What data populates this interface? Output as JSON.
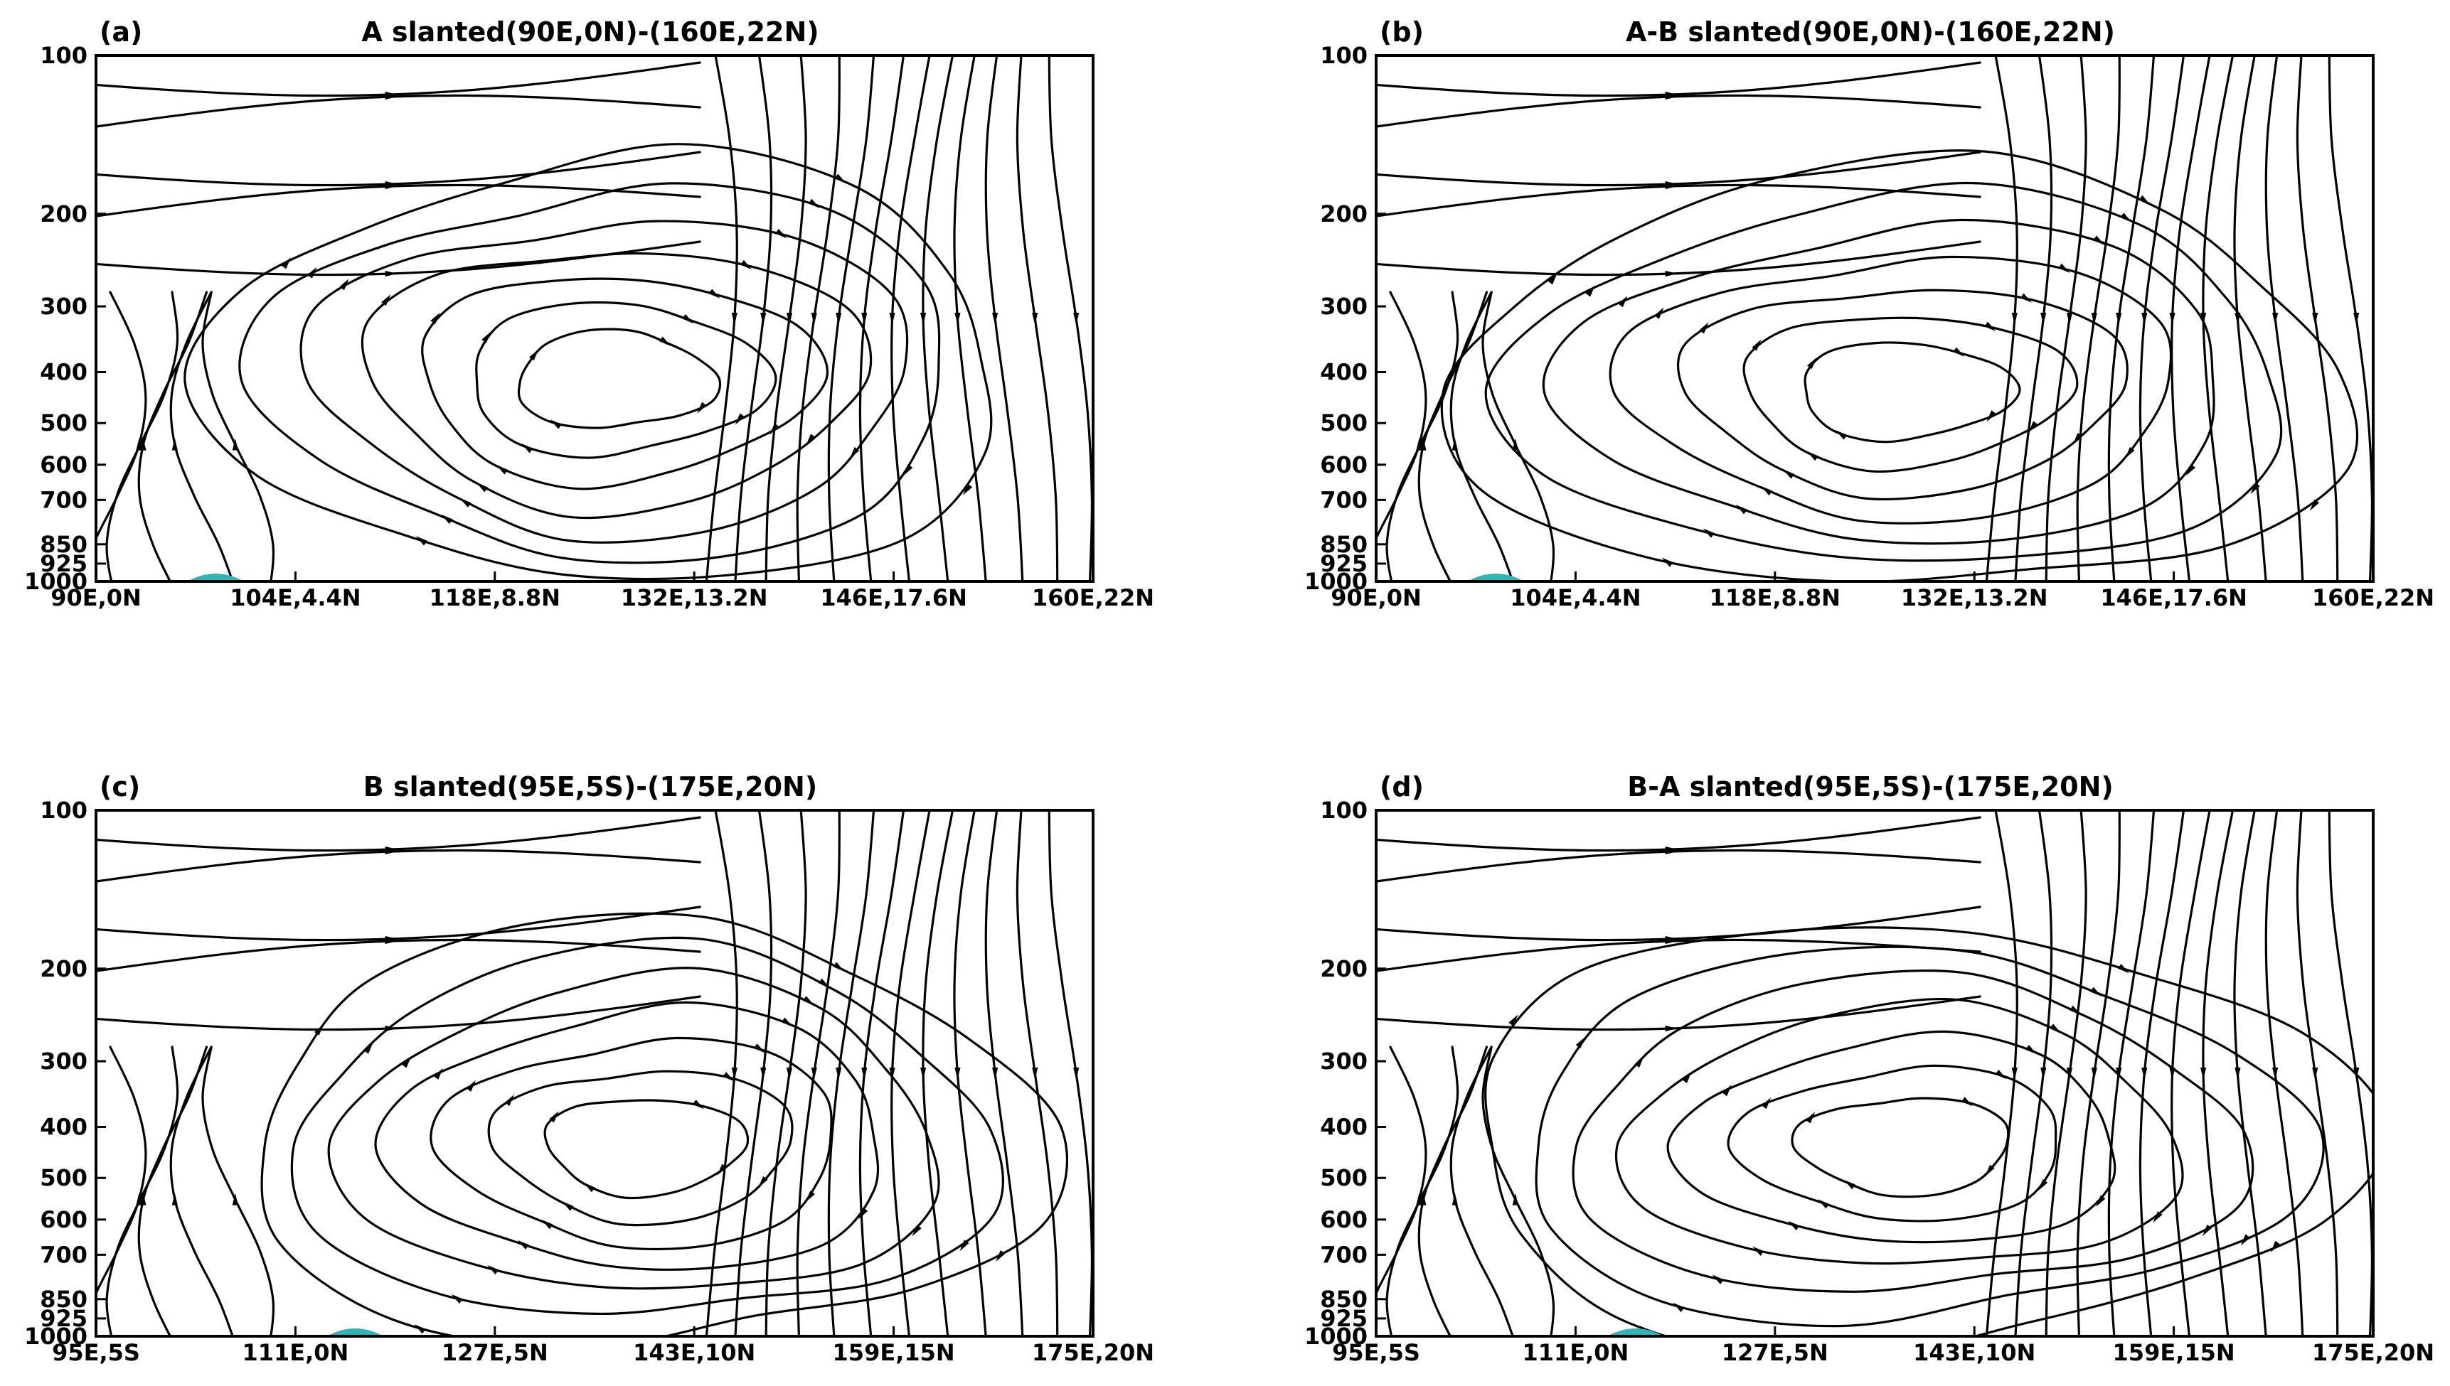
{
  "figure": {
    "panels": [
      {
        "id": "a",
        "label": "(a)",
        "title": "A slanted(90E,0N)-(160E,22N)",
        "y_ticks": [
          "100",
          "200",
          "300",
          "400",
          "500",
          "600",
          "700",
          "850",
          "925",
          "1000"
        ],
        "x_ticks": [
          "90E,0N",
          "104E,4.4N",
          "118E,8.8N",
          "132E,13.2N",
          "146E,17.6N",
          "160E,22N"
        ],
        "circulation": {
          "center_x_frac": 0.52,
          "center_y_frac": 0.62
        }
      },
      {
        "id": "b",
        "label": "(b)",
        "title": "A-B slanted(90E,0N)-(160E,22N)",
        "y_ticks": [
          "100",
          "200",
          "300",
          "400",
          "500",
          "600",
          "700",
          "850",
          "925",
          "1000"
        ],
        "x_ticks": [
          "90E,0N",
          "104E,4.4N",
          "118E,8.8N",
          "132E,13.2N",
          "146E,17.6N",
          "160E,22N"
        ],
        "circulation": {
          "center_x_frac": 0.53,
          "center_y_frac": 0.64
        }
      },
      {
        "id": "c",
        "label": "(c)",
        "title": "B slanted(95E,5S)-(175E,20N)",
        "y_ticks": [
          "100",
          "200",
          "300",
          "400",
          "500",
          "600",
          "700",
          "850",
          "925",
          "1000"
        ],
        "x_ticks": [
          "95E,5S",
          "111E,0N",
          "127E,5N",
          "143E,10N",
          "159E,15N",
          "175E,20N"
        ],
        "circulation": {
          "center_x_frac": 0.55,
          "center_y_frac": 0.64
        }
      },
      {
        "id": "d",
        "label": "(d)",
        "title": "B-A slanted(95E,5S)-(175E,20N)",
        "y_ticks": [
          "100",
          "200",
          "300",
          "400",
          "500",
          "600",
          "700",
          "850",
          "925",
          "1000"
        ],
        "x_ticks": [
          "95E,5S",
          "111E,0N",
          "127E,5N",
          "143E,10N",
          "159E,15N",
          "175E,20N"
        ],
        "circulation": {
          "center_x_frac": 0.53,
          "center_y_frac": 0.64
        }
      }
    ],
    "colors": {
      "lines": "#000000",
      "background": "#ffffff",
      "shading": "#2ab7b7"
    }
  }
}
